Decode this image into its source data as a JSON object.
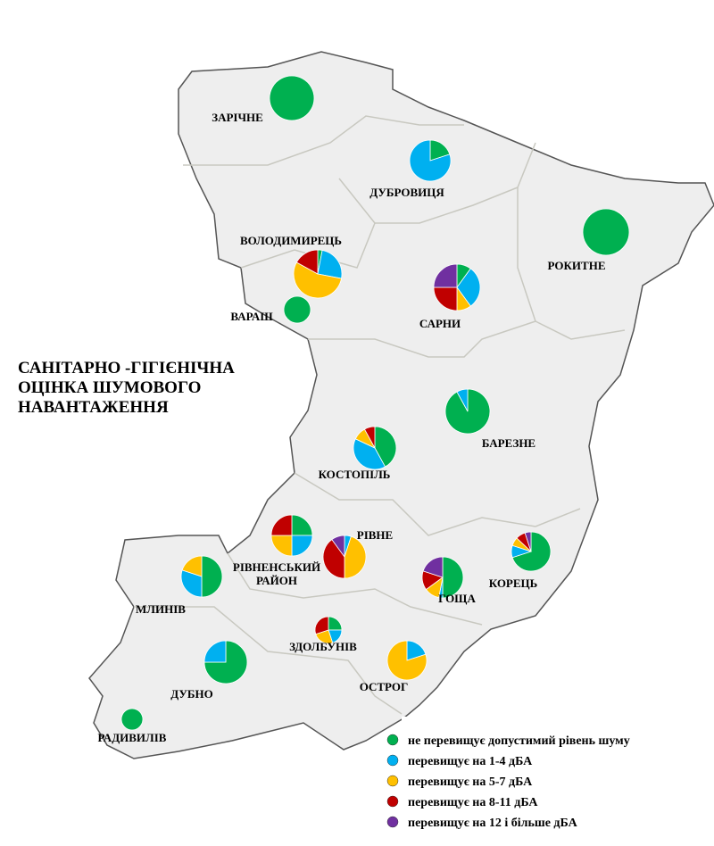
{
  "title": [
    "САНІТАРНО -ГІГІЄНІЧНА",
    "ОЦІНКА ШУМОВОГО",
    "НАВАНТАЖЕННЯ"
  ],
  "legend": [
    {
      "label": "не перевищує допустимий рівень шуму",
      "color": "#00b050"
    },
    {
      "label": "перевищує на 1-4 дБА",
      "color": "#00b0f0"
    },
    {
      "label": "перевищує на 5-7 дБА",
      "color": "#ffc000"
    },
    {
      "label": "перевищує на 8-11 дБА",
      "color": "#c00000"
    },
    {
      "label": "перевищує на 12 і більше дБА",
      "color": "#7030a0"
    }
  ],
  "places": [
    {
      "name": [
        "ЗАРІЧНЕ"
      ],
      "values": [
        100,
        0,
        0,
        0,
        0
      ]
    },
    {
      "name": [
        "ДУБРОВИЦЯ"
      ],
      "values": [
        20,
        80,
        0,
        0,
        0
      ]
    },
    {
      "name": [
        "РОКИТНЕ"
      ],
      "values": [
        100,
        0,
        0,
        0,
        0
      ]
    },
    {
      "name": [
        "ВОЛОДИМИРЕЦЬ"
      ],
      "values": [
        3,
        25,
        55,
        17,
        0
      ]
    },
    {
      "name": [
        "ВАРАШ"
      ],
      "values": [
        100,
        0,
        0,
        0,
        0
      ]
    },
    {
      "name": [
        "САРНИ"
      ],
      "values": [
        10,
        30,
        10,
        25,
        25
      ]
    },
    {
      "name": [
        "БАРЕЗНЕ"
      ],
      "values": [
        92,
        8,
        0,
        0,
        0
      ]
    },
    {
      "name": [
        "КОСТОПІЛЬ"
      ],
      "values": [
        42,
        40,
        10,
        8,
        0
      ]
    },
    {
      "name": [
        "РІВНЕНСЬКИЙ",
        "РАЙОН"
      ],
      "values": [
        25,
        25,
        25,
        25,
        0
      ]
    },
    {
      "name": [
        "РІВНЕ"
      ],
      "values": [
        0,
        5,
        45,
        40,
        10
      ]
    },
    {
      "name": [
        "ГОЩА"
      ],
      "values": [
        50,
        3,
        12,
        15,
        20
      ]
    },
    {
      "name": [
        "КОРЕЦЬ"
      ],
      "values": [
        70,
        10,
        7,
        8,
        5
      ]
    },
    {
      "name": [
        "МЛИНІВ"
      ],
      "values": [
        50,
        30,
        20,
        0,
        0
      ]
    },
    {
      "name": [
        "ЗДОЛБУНІВ"
      ],
      "values": [
        25,
        20,
        25,
        30,
        0
      ]
    },
    {
      "name": [
        "ДУБНО"
      ],
      "values": [
        75,
        25,
        0,
        0,
        0
      ]
    },
    {
      "name": [
        "ОСТРОГ"
      ],
      "values": [
        0,
        20,
        80,
        0,
        0
      ]
    },
    {
      "name": [
        "РАДИВИЛІВ"
      ],
      "values": [
        100,
        0,
        0,
        0,
        0
      ]
    }
  ]
}
